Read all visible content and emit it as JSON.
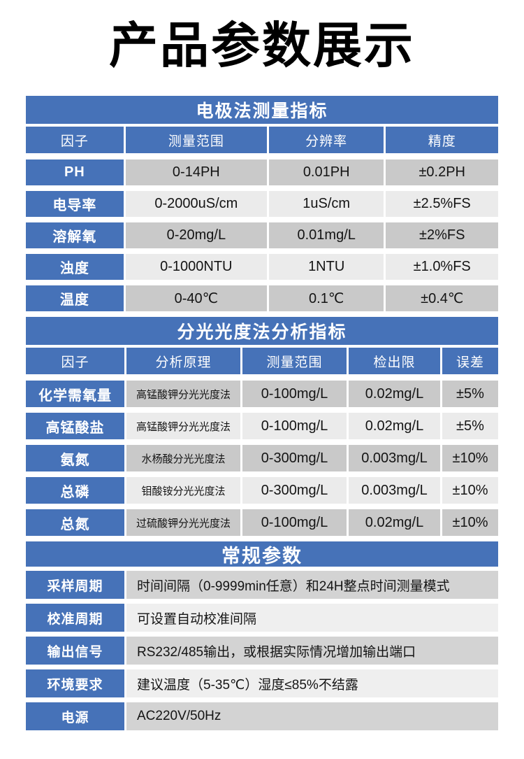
{
  "page": {
    "title": "产品参数展示"
  },
  "colors": {
    "header_blue": "#4672B8",
    "row_dark": "#C9C9C9",
    "row_light": "#EBEBEB",
    "general_row_dark": "#D3D3D3",
    "general_row_light": "#EFEFEF",
    "text_on_blue": "#FFFFFF",
    "text_dark": "#141414"
  },
  "electrode_table": {
    "title": "电极法测量指标",
    "headers": [
      "因子",
      "测量范围",
      "分辨率",
      "精度"
    ],
    "rows": [
      [
        "PH",
        "0-14PH",
        "0.01PH",
        "±0.2PH"
      ],
      [
        "电导率",
        "0-2000uS/cm",
        "1uS/cm",
        "±2.5%FS"
      ],
      [
        "溶解氧",
        "0-20mg/L",
        "0.01mg/L",
        "±2%FS"
      ],
      [
        "浊度",
        "0-1000NTU",
        "1NTU",
        "±1.0%FS"
      ],
      [
        "温度",
        "0-40℃",
        "0.1℃",
        "±0.4℃"
      ]
    ]
  },
  "spectro_table": {
    "title": "分光光度法分析指标",
    "headers": [
      "因子",
      "分析原理",
      "测量范围",
      "检出限",
      "误差"
    ],
    "rows": [
      [
        "化学需氧量",
        "高锰酸钾分光光度法",
        "0-100mg/L",
        "0.02mg/L",
        "±5%"
      ],
      [
        "高锰酸盐",
        "高锰酸钾分光光度法",
        "0-100mg/L",
        "0.02mg/L",
        "±5%"
      ],
      [
        "氨氮",
        "水杨酸分光光度法",
        "0-300mg/L",
        "0.003mg/L",
        "±10%"
      ],
      [
        "总磷",
        "钼酸铵分光光度法",
        "0-300mg/L",
        "0.003mg/L",
        "±10%"
      ],
      [
        "总氮",
        "过硫酸钾分光光度法",
        "0-100mg/L",
        "0.02mg/L",
        "±10%"
      ]
    ]
  },
  "general_table": {
    "title": "常规参数",
    "rows": [
      [
        "采样周期",
        "时间间隔（0-9999min任意）和24H整点时间测量模式"
      ],
      [
        "校准周期",
        "可设置自动校准间隔"
      ],
      [
        "输出信号",
        "RS232/485输出，或根据实际情况增加输出端口"
      ],
      [
        "环境要求",
        "建议温度（5-35℃）湿度≤85%不结露"
      ],
      [
        "电源",
        "AC220V/50Hz"
      ]
    ]
  }
}
